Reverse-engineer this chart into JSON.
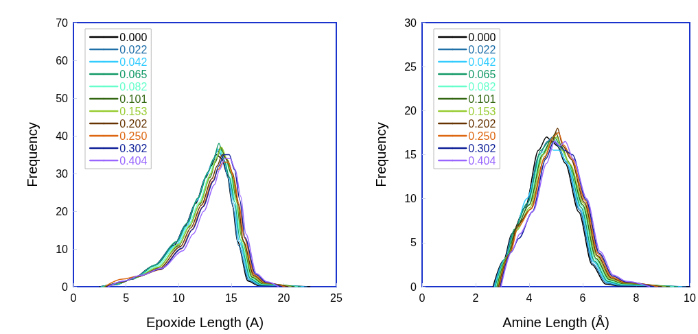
{
  "chart_data": [
    {
      "type": "line",
      "xlabel": "Epoxide Length (A)",
      "ylabel": "Frequency",
      "xlim": [
        0,
        25
      ],
      "xticks": [
        0,
        5,
        10,
        15,
        20,
        25
      ],
      "ylim": [
        0,
        70
      ],
      "yticks": [
        0,
        10,
        20,
        30,
        40,
        50,
        60,
        70
      ],
      "grid": false,
      "legend": "top left",
      "marker": "none",
      "line_style": "solid",
      "series": [
        {
          "name": "0.000",
          "color": "#000000",
          "x": [
            2.5,
            4,
            5.6,
            7.6,
            9.6,
            10.6,
            11.6,
            12.6,
            13.1,
            13.6,
            14.1,
            14.6,
            15.1,
            15.6,
            16.6,
            17.6,
            22.5
          ],
          "values": [
            0,
            0.5,
            2,
            5.5,
            11,
            16,
            22,
            29,
            32,
            35,
            34,
            30,
            22,
            12,
            1.5,
            0.3,
            0
          ]
        },
        {
          "name": "0.022",
          "color": "#1f6fa8",
          "x": [
            2.58,
            4.08,
            5.68,
            7.68,
            9.68,
            10.68,
            11.68,
            12.68,
            13.18,
            13.68,
            14.18,
            14.68,
            15.18,
            15.68,
            16.68,
            17.68,
            22.2
          ],
          "values": [
            0,
            0.6,
            2.1,
            5.6,
            11.5,
            16.5,
            22.5,
            29.5,
            33,
            36,
            34.5,
            29,
            21,
            11,
            1.7,
            0.4,
            0
          ]
        },
        {
          "name": "0.042",
          "color": "#33ccff",
          "x": [
            2.66,
            4.16,
            5.76,
            7.76,
            9.76,
            10.76,
            11.76,
            12.76,
            13.26,
            13.76,
            14.26,
            14.76,
            15.26,
            15.76,
            16.76,
            17.76,
            21.9
          ],
          "values": [
            0,
            0.7,
            2.2,
            5.7,
            11,
            16,
            23,
            30,
            33.5,
            36.5,
            34,
            29.5,
            22,
            12,
            1.9,
            0.5,
            0
          ]
        },
        {
          "name": "0.065",
          "color": "#119966",
          "x": [
            2.74,
            4.24,
            5.84,
            7.84,
            9.84,
            10.84,
            11.84,
            12.84,
            13.34,
            13.84,
            14.34,
            14.84,
            15.34,
            15.84,
            16.84,
            17.84,
            21.6
          ],
          "values": [
            0,
            0.8,
            2.3,
            5.8,
            12,
            17,
            23.5,
            30.5,
            34,
            38,
            33.5,
            29,
            22.5,
            12.5,
            2.1,
            0.6,
            0
          ]
        },
        {
          "name": "0.082",
          "color": "#66ffcc",
          "x": [
            2.82,
            4.32,
            5.92,
            7.92,
            9.92,
            10.92,
            11.92,
            12.92,
            13.42,
            13.92,
            14.42,
            14.92,
            15.42,
            15.92,
            16.92,
            17.92,
            21.3
          ],
          "values": [
            0,
            0.9,
            2.4,
            5.4,
            11.2,
            16.2,
            22.2,
            29.2,
            33.2,
            36.2,
            34.2,
            30.2,
            22.2,
            12.2,
            2.3,
            0.7,
            0
          ]
        },
        {
          "name": "0.101",
          "color": "#336611",
          "x": [
            2.9,
            4.4,
            6,
            8,
            10,
            11,
            12,
            13,
            13.5,
            14,
            14.5,
            15,
            15.5,
            16,
            17,
            18,
            21
          ],
          "values": [
            0,
            1,
            2.5,
            5,
            10.8,
            15.8,
            21.8,
            29,
            33,
            37,
            34,
            30,
            23,
            13,
            2.5,
            0.8,
            0
          ]
        },
        {
          "name": "0.153",
          "color": "#99cc33",
          "x": [
            2.98,
            4.48,
            6.08,
            8.08,
            10.08,
            11.08,
            12.08,
            13.08,
            13.58,
            14.08,
            14.58,
            15.08,
            15.58,
            16.08,
            17.08,
            18.08,
            20.7
          ],
          "values": [
            0,
            1.1,
            2.6,
            5.2,
            11.3,
            16.3,
            22.3,
            30,
            34,
            37,
            34,
            30,
            22,
            12,
            2.7,
            0.9,
            0
          ]
        },
        {
          "name": "0.202",
          "color": "#663300",
          "x": [
            3.06,
            4.56,
            6.16,
            8.16,
            10.16,
            11.16,
            12.16,
            13.16,
            13.66,
            14.16,
            14.66,
            15.16,
            15.66,
            16.16,
            17.16,
            18.16,
            20.4
          ],
          "values": [
            0,
            1.2,
            2.7,
            4.8,
            10.6,
            15.6,
            21.6,
            28.6,
            32,
            35,
            33.5,
            30,
            22,
            12,
            2.9,
            1,
            0
          ]
        },
        {
          "name": "0.250",
          "color": "#dd6611",
          "x": [
            3.14,
            4.64,
            6.24,
            8.24,
            10.24,
            11.24,
            12.24,
            13.24,
            13.74,
            14.24,
            14.74,
            15.24,
            15.74,
            16.24,
            17.24,
            18.24,
            20.1
          ],
          "values": [
            0.3,
            2,
            2.8,
            4.5,
            10,
            15,
            21,
            28,
            31,
            33,
            33,
            29,
            22,
            13,
            3.1,
            1.1,
            0
          ]
        },
        {
          "name": "0.302",
          "color": "#112299",
          "x": [
            3.22,
            4.72,
            6.32,
            8.32,
            10.32,
            11.32,
            12.32,
            13.32,
            13.82,
            14.32,
            14.82,
            15.32,
            15.82,
            16.32,
            17.32,
            18.32,
            19.8
          ],
          "values": [
            0,
            1.4,
            2.9,
            4.7,
            10.2,
            15.2,
            21.2,
            28,
            32,
            35,
            35,
            31,
            23,
            13,
            3.3,
            1.2,
            0
          ]
        },
        {
          "name": "0.404",
          "color": "#9966ff",
          "x": [
            3.3,
            4.8,
            6.4,
            8.4,
            10.4,
            11.4,
            12.4,
            13.4,
            13.9,
            14.4,
            14.9,
            15.4,
            15.9,
            16.4,
            17.4,
            18.4,
            19.5
          ],
          "values": [
            0,
            1.5,
            3,
            4.9,
            9.5,
            14,
            20,
            27,
            31,
            34,
            34,
            31,
            24,
            14,
            3.5,
            1.3,
            0
          ]
        }
      ]
    },
    {
      "type": "line",
      "xlabel": "Amine Length (Å)",
      "ylabel": "Frequency",
      "xlim": [
        0,
        10
      ],
      "xticks": [
        0,
        2,
        4,
        6,
        8,
        10
      ],
      "ylim": [
        0,
        30
      ],
      "yticks": [
        0,
        5,
        10,
        15,
        20,
        25,
        30
      ],
      "grid": false,
      "legend": "top left",
      "marker": "none",
      "line_style": "solid",
      "series": [
        {
          "name": "0.000",
          "color": "#000000",
          "x": [
            2.65,
            3.05,
            3.35,
            3.85,
            4.35,
            4.65,
            4.85,
            5.05,
            5.35,
            5.85,
            6.35,
            6.85,
            7.35,
            10
          ],
          "values": [
            0,
            3,
            6,
            9,
            15.5,
            17,
            16.5,
            16,
            14,
            8.5,
            2.5,
            0.3,
            0.1,
            0
          ]
        },
        {
          "name": "0.022",
          "color": "#1f6fa8",
          "x": [
            2.68,
            3.08,
            3.38,
            3.88,
            4.38,
            4.68,
            4.88,
            5.08,
            5.38,
            5.88,
            6.38,
            6.88,
            7.38,
            9.85
          ],
          "values": [
            0,
            3.1,
            6.1,
            9.1,
            15,
            16.5,
            17,
            16,
            14.2,
            8.7,
            2.6,
            0.4,
            0.15,
            0
          ]
        },
        {
          "name": "0.042",
          "color": "#33ccff",
          "x": [
            2.71,
            3.11,
            3.41,
            3.91,
            4.41,
            4.71,
            4.91,
            5.11,
            5.41,
            5.91,
            6.41,
            6.91,
            7.41,
            9.7
          ],
          "values": [
            0,
            3.2,
            5.9,
            10,
            14.5,
            16,
            15.5,
            15.5,
            14,
            8.8,
            2.8,
            0.5,
            0.2,
            0
          ]
        },
        {
          "name": "0.065",
          "color": "#119966",
          "x": [
            2.74,
            3.14,
            3.44,
            3.94,
            4.44,
            4.74,
            4.94,
            5.14,
            5.44,
            5.94,
            6.44,
            6.94,
            7.44,
            9.55
          ],
          "values": [
            0,
            3.3,
            6.5,
            9.5,
            15.5,
            16.5,
            17,
            16.2,
            14.3,
            9,
            2.9,
            0.6,
            0.25,
            0
          ]
        },
        {
          "name": "0.082",
          "color": "#66ffcc",
          "x": [
            2.77,
            3.17,
            3.47,
            3.97,
            4.47,
            4.77,
            4.97,
            5.17,
            5.47,
            5.97,
            6.47,
            6.97,
            7.47,
            9.4
          ],
          "values": [
            0,
            3.4,
            6.2,
            9.2,
            15.2,
            16.2,
            16.5,
            15.8,
            14.1,
            9.2,
            3.1,
            0.7,
            0.3,
            0
          ]
        },
        {
          "name": "0.101",
          "color": "#336611",
          "x": [
            2.8,
            3.2,
            3.5,
            4,
            4.5,
            4.8,
            5,
            5.2,
            5.5,
            6,
            6.5,
            7,
            7.5,
            9.25
          ],
          "values": [
            0,
            3.5,
            6.6,
            9.3,
            15,
            16.6,
            17.5,
            16,
            14,
            9.3,
            3.2,
            0.8,
            0.35,
            0
          ]
        },
        {
          "name": "0.153",
          "color": "#99cc33",
          "x": [
            2.83,
            3.23,
            3.53,
            4.03,
            4.53,
            4.83,
            5.03,
            5.23,
            5.53,
            6.03,
            6.53,
            7.03,
            7.53,
            9.1
          ],
          "values": [
            0,
            3.6,
            6.4,
            9,
            15,
            16.4,
            17,
            15.5,
            13.9,
            9.5,
            3.4,
            0.9,
            0.4,
            0
          ]
        },
        {
          "name": "0.202",
          "color": "#663300",
          "x": [
            2.86,
            3.26,
            3.56,
            4.06,
            4.56,
            4.86,
            5.06,
            5.26,
            5.56,
            6.06,
            6.56,
            7.06,
            7.56,
            8.95
          ],
          "values": [
            0,
            3.7,
            7,
            8.8,
            14.5,
            16.5,
            18,
            16,
            14.5,
            9.6,
            3.5,
            1,
            0.45,
            0
          ]
        },
        {
          "name": "0.250",
          "color": "#dd6611",
          "x": [
            2.89,
            3.29,
            3.59,
            4.09,
            4.59,
            4.89,
            5.09,
            5.29,
            5.59,
            6.09,
            6.59,
            7.09,
            7.59,
            8.8
          ],
          "values": [
            0,
            3.8,
            6.8,
            8.9,
            14.8,
            17,
            17.5,
            16.1,
            14.6,
            9.8,
            3.7,
            1.1,
            0.5,
            0
          ]
        },
        {
          "name": "0.302",
          "color": "#112299",
          "x": [
            2.92,
            3.32,
            3.62,
            4.12,
            4.62,
            4.92,
            5.12,
            5.32,
            5.62,
            6.12,
            6.62,
            7.12,
            7.62,
            8.65
          ],
          "values": [
            0,
            3.9,
            5.5,
            8.5,
            14.5,
            16.5,
            16,
            15.5,
            15,
            9.9,
            3.8,
            1.2,
            0.55,
            0
          ]
        },
        {
          "name": "0.404",
          "color": "#9966ff",
          "x": [
            2.95,
            3.35,
            3.65,
            4.15,
            4.65,
            4.95,
            5.15,
            5.35,
            5.65,
            6.15,
            6.65,
            7.15,
            7.65,
            8.5
          ],
          "values": [
            0,
            4,
            6,
            8.6,
            14,
            16.5,
            16,
            16.5,
            14.5,
            10,
            4,
            1.3,
            0.6,
            0
          ]
        }
      ]
    }
  ]
}
